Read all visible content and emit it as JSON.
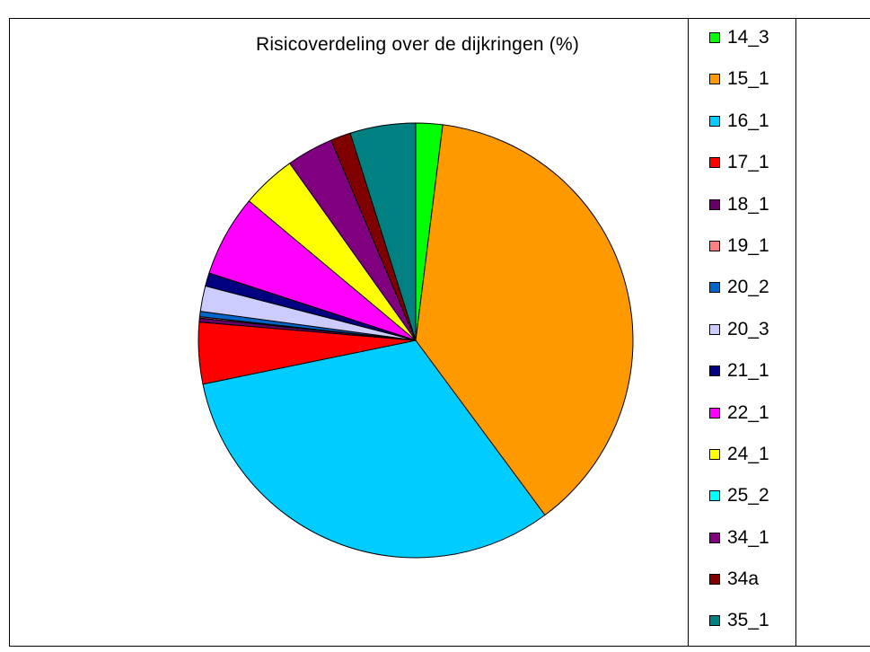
{
  "chart_data": {
    "type": "pie",
    "title": "Risicoverdeling over de dijkringen (%)",
    "slices": [
      {
        "label": "14_3",
        "value": 2.0,
        "color": "#00ff00"
      },
      {
        "label": "15_1",
        "value": 38.1,
        "color": "#ff9900"
      },
      {
        "label": "16_1",
        "value": 32.1,
        "color": "#00ccff"
      },
      {
        "label": "17_1",
        "value": 4.6,
        "color": "#ff0000"
      },
      {
        "label": "18_1",
        "value": 0.3,
        "color": "#660066"
      },
      {
        "label": "19_1",
        "value": 0.1,
        "color": "#ff8080"
      },
      {
        "label": "20_2",
        "value": 0.4,
        "color": "#0066cc"
      },
      {
        "label": "20_3",
        "value": 1.9,
        "color": "#ccccff"
      },
      {
        "label": "21_1",
        "value": 1.0,
        "color": "#000080"
      },
      {
        "label": "22_1",
        "value": 6.1,
        "color": "#ff00ff"
      },
      {
        "label": "24_1",
        "value": 4.1,
        "color": "#ffff00"
      },
      {
        "label": "25_2",
        "value": 0.0,
        "color": "#00ffff"
      },
      {
        "label": "34_1",
        "value": 3.5,
        "color": "#800080"
      },
      {
        "label": "34a",
        "value": 1.5,
        "color": "#800000"
      },
      {
        "label": "35_1",
        "value": 4.9,
        "color": "#008080"
      }
    ],
    "legend_position": "right"
  }
}
